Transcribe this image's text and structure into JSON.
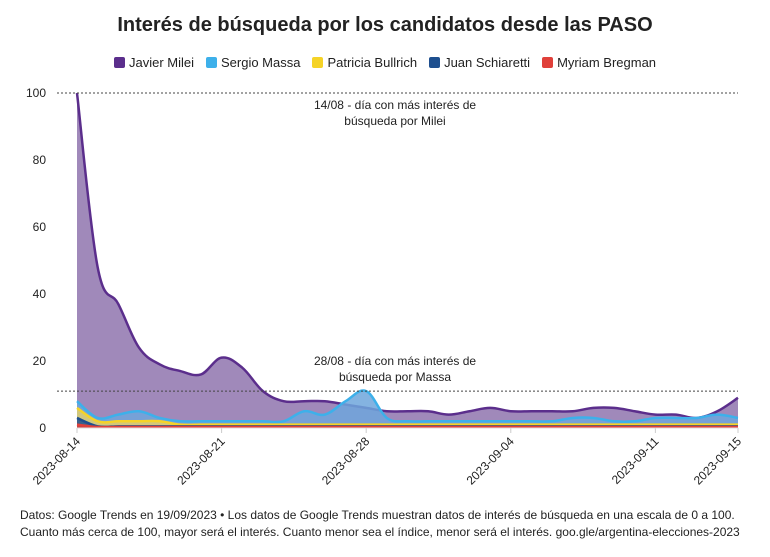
{
  "chart_data": {
    "type": "area",
    "title": "Interés de búsqueda por los candidatos desde las PASO",
    "ylim": [
      0,
      100
    ],
    "yticks": [
      0,
      20,
      40,
      60,
      80,
      100
    ],
    "x_start": "2023-08-14",
    "x_end": "2023-09-15",
    "xticks": [
      "2023-08-14",
      "2023-08-21",
      "2023-08-28",
      "2023-09-04",
      "2023-09-11",
      "2023-09-15"
    ],
    "legend_position": "top",
    "series": [
      {
        "name": "Javier Milei",
        "color": "#5b2e8c",
        "fill": "#8f74ae",
        "values": [
          100,
          48,
          37,
          24,
          19,
          17,
          16,
          21,
          18,
          11,
          8,
          8,
          8,
          7,
          6,
          5,
          5,
          5,
          4,
          5,
          6,
          5,
          5,
          5,
          5,
          6,
          6,
          5,
          4,
          4,
          3,
          5,
          9
        ]
      },
      {
        "name": "Sergio Massa",
        "color": "#3db0ea",
        "fill": "#6fa6dc",
        "values": [
          8,
          3,
          4,
          5,
          3,
          2,
          2,
          2,
          2,
          2,
          2,
          5,
          4,
          8,
          11,
          3,
          2,
          2,
          2,
          2,
          2,
          2,
          2,
          2,
          3,
          3,
          2,
          2,
          3,
          3,
          3,
          4,
          3
        ]
      },
      {
        "name": "Patricia Bullrich",
        "color": "#f5d327",
        "fill": "#e3cf6b",
        "values": [
          6,
          2,
          2,
          2,
          2,
          1,
          1,
          1,
          1,
          1,
          1,
          1,
          1,
          1,
          1,
          1,
          1,
          1,
          1,
          1,
          1,
          1,
          1,
          1,
          1,
          1,
          1,
          1,
          1,
          1,
          1,
          1,
          1
        ]
      },
      {
        "name": "Juan Schiaretti",
        "color": "#1e4f8f",
        "fill": "#1e4f8f",
        "values": [
          3,
          0.5,
          0.5,
          0.5,
          0.5,
          0.5,
          0.5,
          0.5,
          0.5,
          0.5,
          0.5,
          0.5,
          0.5,
          0.5,
          0.5,
          0.5,
          0.5,
          0.5,
          0.5,
          0.5,
          0.5,
          0.5,
          0.5,
          0.5,
          0.5,
          0.5,
          0.5,
          0.5,
          0.5,
          0.5,
          0.5,
          0.5,
          0.5
        ]
      },
      {
        "name": "Myriam Bregman",
        "color": "#e0403a",
        "fill": "#e0403a",
        "values": [
          1,
          0.3,
          0.3,
          0.3,
          0.3,
          0.3,
          0.3,
          0.3,
          0.3,
          0.3,
          0.3,
          0.3,
          0.3,
          0.3,
          0.3,
          0.3,
          0.3,
          0.3,
          0.3,
          0.3,
          0.3,
          0.3,
          0.3,
          0.3,
          0.3,
          0.3,
          0.3,
          0.3,
          0.3,
          0.3,
          0.3,
          0.3,
          0.3
        ]
      }
    ],
    "annotations": [
      {
        "y": 100,
        "lines": [
          "14/08 - día con más interés de",
          "búsqueda por Milei"
        ]
      },
      {
        "y": 11,
        "lines": [
          "28/08 - día con más interés de",
          "búsqueda por Massa"
        ]
      }
    ]
  },
  "footer": {
    "line1": "Datos: Google Trends en 19/09/2023 • Los datos de Google Trends muestran datos de interés de búsqueda en una escala de 0 a 100.",
    "line2": "Cuanto más cerca de 100, mayor será el interés. Cuanto menor sea el índice, menor será el interés. goo.gle/argentina-elecciones-2023"
  }
}
